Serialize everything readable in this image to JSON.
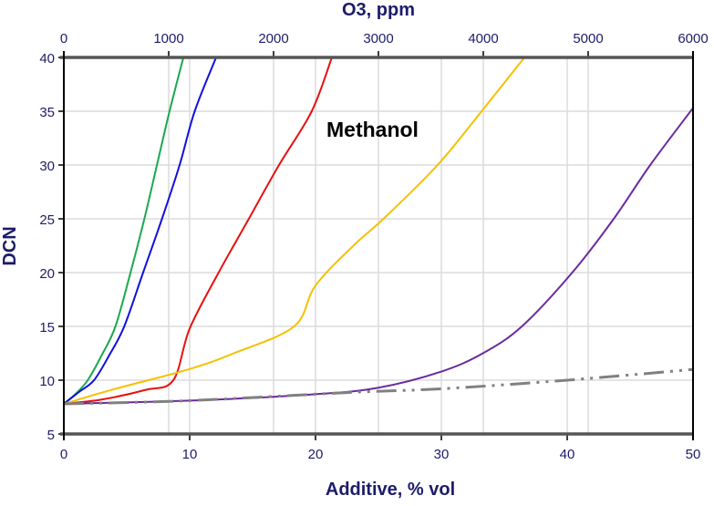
{
  "chart_data": {
    "type": "line",
    "title": "",
    "annotation": "Methanol",
    "xlabel": "Additive, % vol",
    "ylabel": "DCN",
    "x2label": "O3, ppm",
    "xlim": [
      0,
      50
    ],
    "ylim": [
      5,
      40
    ],
    "x2lim": [
      0,
      6000
    ],
    "xticks": [
      "0",
      "10",
      "20",
      "30",
      "40",
      "50"
    ],
    "yticks": [
      "5",
      "10",
      "15",
      "20",
      "25",
      "30",
      "35",
      "40"
    ],
    "x2ticks": [
      "0",
      "1000",
      "2000",
      "3000",
      "4000",
      "5000",
      "6000"
    ],
    "grid": true,
    "series": [
      {
        "color": "#1aa850",
        "style": "solid",
        "points": [
          [
            0,
            7.8
          ],
          [
            1,
            8.8
          ],
          [
            1.9,
            10
          ],
          [
            3,
            12.3
          ],
          [
            4.1,
            15
          ],
          [
            5.3,
            20
          ],
          [
            6.4,
            25
          ],
          [
            7.4,
            30
          ],
          [
            8.4,
            35
          ],
          [
            9.5,
            40
          ]
        ]
      },
      {
        "color": "#1010e0",
        "style": "solid",
        "points": [
          [
            0,
            7.8
          ],
          [
            1.2,
            8.9
          ],
          [
            2.4,
            10
          ],
          [
            3.6,
            12.3
          ],
          [
            4.8,
            15
          ],
          [
            6.3,
            20
          ],
          [
            7.8,
            25
          ],
          [
            9.2,
            30
          ],
          [
            10.4,
            35
          ],
          [
            12.1,
            40
          ]
        ]
      },
      {
        "color": "#e81010",
        "style": "solid",
        "points": [
          [
            0,
            7.8
          ],
          [
            3,
            8.2
          ],
          [
            6.5,
            9.1
          ],
          [
            8.7,
            10
          ],
          [
            10,
            14.8
          ],
          [
            12.3,
            20
          ],
          [
            14.7,
            25
          ],
          [
            17.1,
            30
          ],
          [
            19.7,
            35
          ],
          [
            21.3,
            40
          ]
        ]
      },
      {
        "color": "#f5c000",
        "style": "solid",
        "points": [
          [
            0,
            7.8
          ],
          [
            4.1,
            9.2
          ],
          [
            9.9,
            11
          ],
          [
            13.5,
            12.5
          ],
          [
            18.3,
            15
          ],
          [
            20,
            18.8
          ],
          [
            23.1,
            22.6
          ],
          [
            25.4,
            25
          ],
          [
            29.7,
            30
          ],
          [
            33.2,
            35
          ],
          [
            36.6,
            40
          ]
        ]
      },
      {
        "color": "#6a2aa0",
        "style": "solid",
        "points": [
          [
            0,
            7.8
          ],
          [
            10,
            8.1
          ],
          [
            20,
            8.7
          ],
          [
            25,
            9.3
          ],
          [
            30,
            10.8
          ],
          [
            33.3,
            12.5
          ],
          [
            36.4,
            15
          ],
          [
            40.4,
            20
          ],
          [
            43.7,
            25
          ],
          [
            46.6,
            30
          ],
          [
            50,
            35.3
          ]
        ]
      },
      {
        "color": "#808080",
        "style": "dash-dot-dot",
        "points": [
          [
            0,
            7.8
          ],
          [
            10,
            8.1
          ],
          [
            22.5,
            8.85
          ],
          [
            30,
            9.2
          ],
          [
            40,
            10
          ],
          [
            50,
            11
          ]
        ]
      }
    ]
  }
}
